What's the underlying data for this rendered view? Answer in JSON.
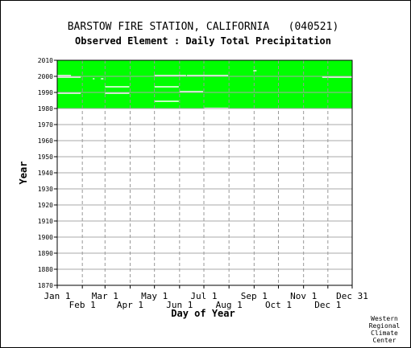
{
  "chart_data": {
    "type": "heatmap",
    "title": "BARSTOW FIRE STATION, CALIFORNIA   (040521)",
    "subtitle": "Observed Element : Daily Total Precipitation",
    "xlabel": "Day of Year",
    "ylabel": "Year",
    "xlim": [
      1,
      365
    ],
    "ylim": [
      1870,
      2010
    ],
    "y_ticks": [
      2010,
      2000,
      1990,
      1980,
      1970,
      1960,
      1950,
      1940,
      1930,
      1920,
      1910,
      1900,
      1890,
      1880,
      1870
    ],
    "x_ticks_upper": [
      {
        "label": "Jan 1",
        "day": 1
      },
      {
        "label": "Mar 1",
        "day": 60
      },
      {
        "label": "May 1",
        "day": 121
      },
      {
        "label": "Jul 1",
        "day": 182
      },
      {
        "label": "Sep 1",
        "day": 244
      },
      {
        "label": "Nov 1",
        "day": 305
      },
      {
        "label": "Dec 31",
        "day": 365
      }
    ],
    "x_ticks_lower": [
      {
        "label": "Feb 1",
        "day": 32
      },
      {
        "label": "Apr 1",
        "day": 91
      },
      {
        "label": "Jun 1",
        "day": 152
      },
      {
        "label": "Aug 1",
        "day": 213
      },
      {
        "label": "Oct 1",
        "day": 274
      },
      {
        "label": "Dec 1",
        "day": 335
      }
    ],
    "grid": true,
    "data_color": "#00ff00",
    "available_period": {
      "year_start": 1980,
      "year_end": 2010,
      "day_start": 1,
      "day_end": 365
    },
    "missing_gaps": [
      {
        "year": 2003.5,
        "day_start": 243,
        "day_end": 247
      },
      {
        "year": 2000.5,
        "day_start": 1,
        "day_end": 18
      },
      {
        "year": 2000.5,
        "day_start": 121,
        "day_end": 160
      },
      {
        "year": 2000.5,
        "day_start": 161,
        "day_end": 212
      },
      {
        "year": 1999.5,
        "day_start": 1,
        "day_end": 30
      },
      {
        "year": 1999.5,
        "day_start": 328,
        "day_end": 365
      },
      {
        "year": 1998.5,
        "day_start": 45,
        "day_end": 47
      },
      {
        "year": 1998.5,
        "day_start": 55,
        "day_end": 58
      },
      {
        "year": 1993.5,
        "day_start": 60,
        "day_end": 90
      },
      {
        "year": 1993.5,
        "day_start": 121,
        "day_end": 151
      },
      {
        "year": 1990.5,
        "day_start": 152,
        "day_end": 181
      },
      {
        "year": 1989.5,
        "day_start": 1,
        "day_end": 30
      },
      {
        "year": 1989.5,
        "day_start": 60,
        "day_end": 90
      },
      {
        "year": 1984.5,
        "day_start": 121,
        "day_end": 151
      },
      {
        "year": 1980.2,
        "day_start": 182,
        "day_end": 212
      }
    ]
  },
  "credit": [
    "Western",
    "Regional",
    "Climate",
    "Center"
  ]
}
